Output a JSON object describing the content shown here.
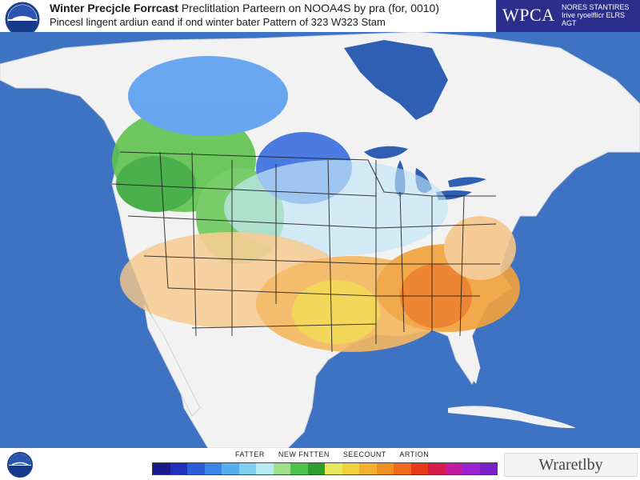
{
  "header": {
    "title_bold": "Winter Precjcle Forrcast",
    "title_rest": "Preclitlation Parteern on NOOA4S by pra (for, 0010)",
    "subtitle": "Pincesl lingent ardiun eand if ond winter bater Pattern of 323 W323 Stam",
    "badge_big": "WPCA",
    "badge_small": "NORES STANTIRES Irive ryoelflicr ELRS AGT"
  },
  "map": {
    "ocean_color": "#3e73c4",
    "land_color": "#f2f2f2",
    "lake_color": "#2f5fb3"
  },
  "legend": {
    "labels": [
      "FATTER",
      "NEW FNTTEN",
      "SEECOUNT",
      "ARTION"
    ],
    "colors": [
      "#1a1a8c",
      "#1f2fbf",
      "#2a5ed8",
      "#3a86e8",
      "#55aef0",
      "#7fd0f0",
      "#b8ecf4",
      "#9fe08a",
      "#4cc44a",
      "#2e9e2e",
      "#e8e860",
      "#f2d23a",
      "#f4b030",
      "#f09020",
      "#ee6a1a",
      "#e83a1a",
      "#d81a4a",
      "#c01aa0",
      "#9a20d0",
      "#7a20c8"
    ]
  },
  "footer": {
    "brand": "Wraretlby"
  }
}
